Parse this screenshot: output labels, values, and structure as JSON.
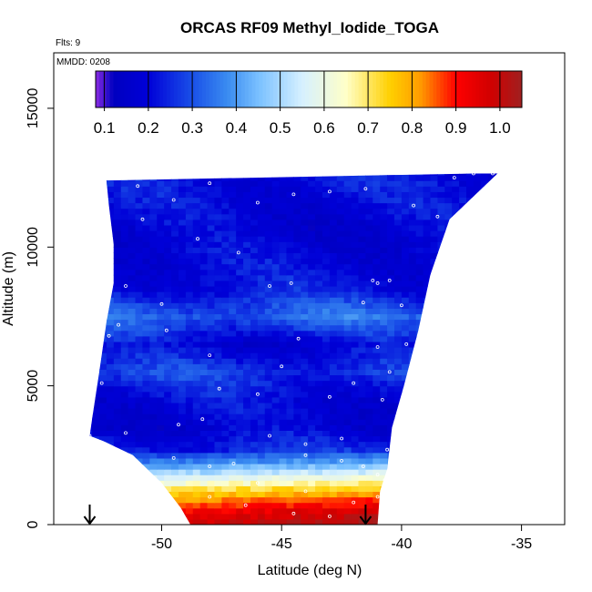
{
  "chart_data": {
    "type": "heatmap",
    "title": "ORCAS RF09 Methyl_Iodide_TOGA",
    "flights_note": "Flts: 9",
    "date_note": "MMDD: 0208",
    "xlabel": "Latitude (deg N)",
    "ylabel": "Altitude (m)",
    "xlim": [
      -54.5,
      -33.2
    ],
    "ylim": [
      0,
      17000
    ],
    "x_ticks": [
      -50,
      -45,
      -40,
      -35
    ],
    "x_tick_labels": [
      "-50",
      "-45",
      "-40",
      "-35"
    ],
    "y_ticks": [
      0,
      5000,
      10000,
      15000
    ],
    "y_tick_labels": [
      "0",
      "5000",
      "10000",
      "15000"
    ],
    "colorbar": {
      "min": 0.08,
      "max": 1.05,
      "ticks": [
        0.1,
        0.2,
        0.3,
        0.4,
        0.5,
        0.6,
        0.7,
        0.8,
        0.9,
        1.0
      ],
      "tick_labels": [
        "0.1",
        "0.2",
        "0.3",
        "0.4",
        "0.5",
        "0.6",
        "0.7",
        "0.8",
        "0.9",
        "1.0"
      ],
      "colors": [
        "#8a2be2",
        "#0000c0",
        "#0000d8",
        "#1a50e8",
        "#3a8cf0",
        "#79c0ff",
        "#d6f0ff",
        "#ffffc8",
        "#ffd000",
        "#ff9a00",
        "#ff0000",
        "#d00000",
        "#a02020"
      ],
      "stops": [
        0.08,
        0.12,
        0.2,
        0.3,
        0.38,
        0.45,
        0.55,
        0.65,
        0.75,
        0.82,
        0.9,
        0.98,
        1.05
      ]
    },
    "domain_polygon": [
      [
        -52.3,
        12400
      ],
      [
        -37.0,
        12650
      ],
      [
        -36.0,
        12650
      ],
      [
        -38.0,
        11000
      ],
      [
        -38.8,
        9000
      ],
      [
        -39.3,
        7000
      ],
      [
        -39.9,
        5000
      ],
      [
        -40.4,
        3500
      ],
      [
        -40.6,
        2000
      ],
      [
        -40.9,
        1200
      ],
      [
        -41.0,
        0
      ],
      [
        -48.8,
        0
      ],
      [
        -49.2,
        600
      ],
      [
        -50.0,
        1500
      ],
      [
        -51.2,
        2500
      ],
      [
        -52.4,
        3000
      ],
      [
        -53.0,
        3200
      ],
      [
        -52.9,
        3800
      ],
      [
        -52.6,
        5500
      ],
      [
        -52.3,
        7300
      ],
      [
        -52.0,
        8700
      ],
      [
        -52.0,
        10100
      ],
      [
        -52.2,
        11500
      ]
    ],
    "field_profile": [
      {
        "alt": 0,
        "value": 1.0
      },
      {
        "alt": 400,
        "value": 0.95
      },
      {
        "alt": 800,
        "value": 0.86
      },
      {
        "alt": 1200,
        "value": 0.75
      },
      {
        "alt": 1700,
        "value": 0.58
      },
      {
        "alt": 2200,
        "value": 0.4
      },
      {
        "alt": 2700,
        "value": 0.25
      },
      {
        "alt": 3500,
        "value": 0.18
      },
      {
        "alt": 4500,
        "value": 0.2
      },
      {
        "alt": 5500,
        "value": 0.27
      },
      {
        "alt": 6500,
        "value": 0.19
      },
      {
        "alt": 7500,
        "value": 0.33
      },
      {
        "alt": 8500,
        "value": 0.22
      },
      {
        "alt": 9500,
        "value": 0.2
      },
      {
        "alt": 10500,
        "value": 0.18
      },
      {
        "alt": 11500,
        "value": 0.2
      },
      {
        "alt": 12650,
        "value": 0.22
      }
    ],
    "sample_points": [
      [
        -51.0,
        12200
      ],
      [
        -49.5,
        11700
      ],
      [
        -48.0,
        12300
      ],
      [
        -46.0,
        11600
      ],
      [
        -44.5,
        11900
      ],
      [
        -43.0,
        12000
      ],
      [
        -41.5,
        12100
      ],
      [
        -39.5,
        11500
      ],
      [
        -38.5,
        11100
      ],
      [
        -37.8,
        12500
      ],
      [
        -37.0,
        12650
      ],
      [
        -36.2,
        12650
      ],
      [
        -50.8,
        11000
      ],
      [
        -48.5,
        10300
      ],
      [
        -46.8,
        9800
      ],
      [
        -45.5,
        8600
      ],
      [
        -44.6,
        8700
      ],
      [
        -41.2,
        8800
      ],
      [
        -41.0,
        8700
      ],
      [
        -40.5,
        8800
      ],
      [
        -51.5,
        8600
      ],
      [
        -50.0,
        7950
      ],
      [
        -41.6,
        8000
      ],
      [
        -40.0,
        7900
      ],
      [
        -51.8,
        7200
      ],
      [
        -49.8,
        7000
      ],
      [
        -44.3,
        6700
      ],
      [
        -41.0,
        6400
      ],
      [
        -39.8,
        6500
      ],
      [
        -39.2,
        6800
      ],
      [
        -52.2,
        6800
      ],
      [
        -48.0,
        6100
      ],
      [
        -45.0,
        5700
      ],
      [
        -42.0,
        5100
      ],
      [
        -40.5,
        5500
      ],
      [
        -52.5,
        5100
      ],
      [
        -47.6,
        4900
      ],
      [
        -46.0,
        4700
      ],
      [
        -43.0,
        4600
      ],
      [
        -40.8,
        4500
      ],
      [
        -48.3,
        3800
      ],
      [
        -49.3,
        3600
      ],
      [
        -51.5,
        3300
      ],
      [
        -45.5,
        3200
      ],
      [
        -44.0,
        2900
      ],
      [
        -42.5,
        3100
      ],
      [
        -40.6,
        2700
      ],
      [
        -53.0,
        3200
      ],
      [
        -49.5,
        2400
      ],
      [
        -48.0,
        2100
      ],
      [
        -47.0,
        2200
      ],
      [
        -44.0,
        2500
      ],
      [
        -42.5,
        2300
      ],
      [
        -41.6,
        2100
      ],
      [
        -41.0,
        1800
      ],
      [
        -40.7,
        1600
      ],
      [
        -46.0,
        1500
      ],
      [
        -44.0,
        1200
      ],
      [
        -48.0,
        1000
      ],
      [
        -46.5,
        700
      ],
      [
        -44.5,
        400
      ],
      [
        -43.0,
        300
      ],
      [
        -42.0,
        800
      ],
      [
        -41.0,
        1000
      ]
    ],
    "arrows_at_lat": [
      -53.0,
      -41.5
    ]
  }
}
